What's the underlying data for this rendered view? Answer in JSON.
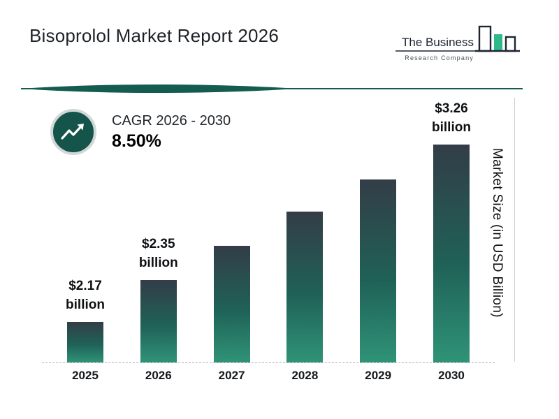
{
  "title": "Bisoprolol Market Report 2026",
  "logo": {
    "line1": "The Business",
    "line2": "Research Company"
  },
  "cagr": {
    "label": "CAGR 2026 - 2030",
    "value": "8.50%"
  },
  "chart_data": {
    "type": "bar",
    "title": "Bisoprolol Market Report 2026",
    "categories": [
      "2025",
      "2026",
      "2027",
      "2028",
      "2029",
      "2030"
    ],
    "values": [
      2.17,
      2.35,
      2.55,
      2.77,
      3.0,
      3.26
    ],
    "unit": "USD billion",
    "xlabel": "",
    "ylabel": "Market Size (in USD Billion)",
    "grid": "dashed baseline only",
    "legend_position": "none",
    "annotations": [
      {
        "category": "2025",
        "lines": [
          "$2.17",
          "billion"
        ]
      },
      {
        "category": "2026",
        "lines": [
          "$2.35",
          "billion"
        ]
      },
      {
        "category": "2030",
        "lines": [
          "$3.26",
          "billion"
        ]
      }
    ]
  },
  "colors": {
    "bar_gradient_top": "#333d47",
    "bar_gradient_bottom": "#2f9377",
    "divider": "#155c50",
    "cagr_circle": "#14544a",
    "logo_navy": "#1d2533",
    "logo_green": "#2eb98b"
  }
}
